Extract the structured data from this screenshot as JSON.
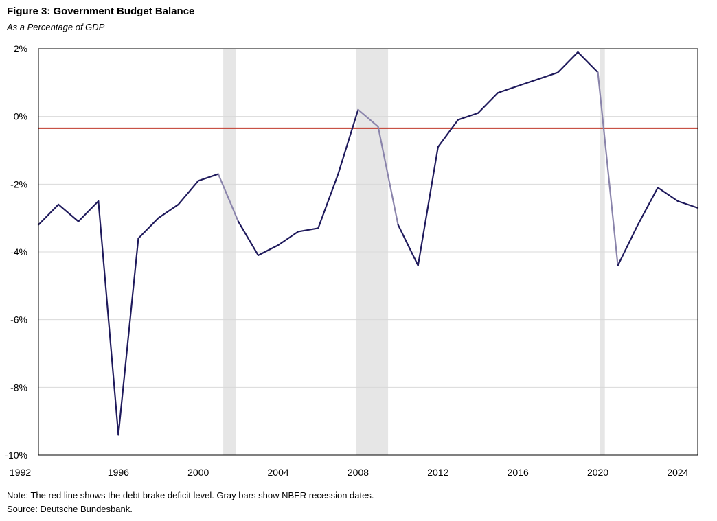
{
  "header": {
    "title": "Figure 3: Government Budget Balance",
    "subtitle": "As a Percentage of GDP"
  },
  "footer": {
    "note": "Note: The red line shows the debt brake deficit level. Gray bars show NBER recession dates.",
    "source": "Source: Deutsche Bundesbank."
  },
  "colors": {
    "series": "#1f1a5c",
    "series_in_recession": "#8a84ab",
    "threshold": "#c0392b",
    "recession": "#e6e6e6",
    "grid": "#d9d9d9"
  },
  "chart_data": {
    "type": "line",
    "title": "Figure 3: Government Budget Balance",
    "subtitle": "As a Percentage of GDP",
    "xlabel": "",
    "ylabel": "",
    "xlim": [
      1992,
      2025
    ],
    "ylim": [
      -10,
      2
    ],
    "x_ticks": [
      {
        "value": 1992,
        "label": "1992"
      },
      {
        "value": 1996,
        "label": "1996"
      },
      {
        "value": 2000,
        "label": "2000"
      },
      {
        "value": 2004,
        "label": "2004"
      },
      {
        "value": 2008,
        "label": "2008"
      },
      {
        "value": 2012,
        "label": "2012"
      },
      {
        "value": 2016,
        "label": "2016"
      },
      {
        "value": 2020,
        "label": "2020"
      },
      {
        "value": 2024,
        "label": "2024"
      }
    ],
    "y_ticks": [
      {
        "value": 2,
        "label": "2%"
      },
      {
        "value": 0,
        "label": "0%"
      },
      {
        "value": -2,
        "label": "-2%"
      },
      {
        "value": -4,
        "label": "-4%"
      },
      {
        "value": -6,
        "label": "-6%"
      },
      {
        "value": -8,
        "label": "-8%"
      },
      {
        "value": -10,
        "label": "-10%"
      }
    ],
    "grid": true,
    "series": [
      {
        "name": "Government Budget Balance",
        "x": [
          1992,
          1993,
          1994,
          1995,
          1996,
          1997,
          1998,
          1999,
          2000,
          2001,
          2002,
          2003,
          2004,
          2005,
          2006,
          2007,
          2008,
          2009,
          2010,
          2011,
          2012,
          2013,
          2014,
          2015,
          2016,
          2017,
          2018,
          2019,
          2020,
          2021,
          2022,
          2023,
          2024,
          2025
        ],
        "y": [
          -3.2,
          -2.6,
          -3.1,
          -2.5,
          -9.4,
          -3.6,
          -3.0,
          -2.6,
          -1.9,
          -1.7,
          -3.1,
          -4.1,
          -3.8,
          -3.4,
          -3.3,
          -1.7,
          0.2,
          -0.3,
          -3.2,
          -4.4,
          -0.9,
          -0.1,
          0.1,
          0.7,
          0.9,
          1.1,
          1.3,
          1.9,
          1.3,
          -4.4,
          -3.2,
          -2.1,
          -2.5,
          -2.7
        ]
      }
    ],
    "threshold": {
      "name": "Debt brake deficit level",
      "value": -0.35
    },
    "recessions": [
      {
        "start": 2001.25,
        "end": 2001.9
      },
      {
        "start": 2007.9,
        "end": 2009.5
      },
      {
        "start": 2020.1,
        "end": 2020.35
      }
    ]
  }
}
